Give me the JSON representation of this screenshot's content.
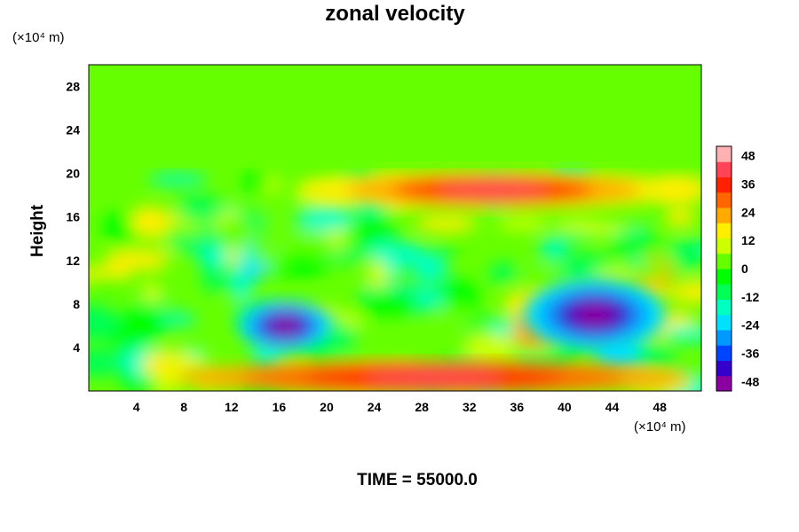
{
  "chart_data": {
    "type": "heatmap",
    "title": "zonal velocity",
    "ylabel": "Height",
    "x_unit_note": "(×10⁴ m)",
    "y_unit_note": "(×10⁴ m)",
    "xlim": [
      0,
      51.5
    ],
    "ylim": [
      0,
      30
    ],
    "x_ticks": [
      4,
      8,
      12,
      16,
      20,
      24,
      28,
      32,
      36,
      40,
      44,
      48
    ],
    "y_ticks": [
      4,
      8,
      12,
      16,
      20,
      24,
      28
    ],
    "colorbar": {
      "range": [
        -52,
        52
      ],
      "tick_values": [
        48,
        36,
        24,
        12,
        0,
        -12,
        -24,
        -36,
        -48
      ],
      "colors_low_to_high": [
        "#8b00a0",
        "#3300cc",
        "#0044ff",
        "#0099ff",
        "#00e0ff",
        "#00ffc0",
        "#00ff55",
        "#00ff00",
        "#66ff00",
        "#ccff00",
        "#ffee00",
        "#ffaa00",
        "#ff6600",
        "#ff2200",
        "#ff4455",
        "#ffb0b0"
      ]
    },
    "features": [
      {
        "label": "upper green band",
        "x": [
          0,
          51.5
        ],
        "y": [
          21,
          30
        ],
        "value": 0
      },
      {
        "label": "strong positive jet",
        "x": [
          18,
          50
        ],
        "y": [
          17,
          20
        ],
        "value": 40
      },
      {
        "label": "negative core right",
        "x": [
          37,
          48
        ],
        "y": [
          4,
          10
        ],
        "value": -50
      },
      {
        "label": "negative core center-left",
        "x": [
          13,
          20
        ],
        "y": [
          4,
          8
        ],
        "value": -48
      },
      {
        "label": "positive near-surface",
        "x": [
          8,
          50
        ],
        "y": [
          0,
          2.5
        ],
        "value": 44
      }
    ]
  },
  "footer": {
    "time_label": "TIME = 55000.0"
  }
}
